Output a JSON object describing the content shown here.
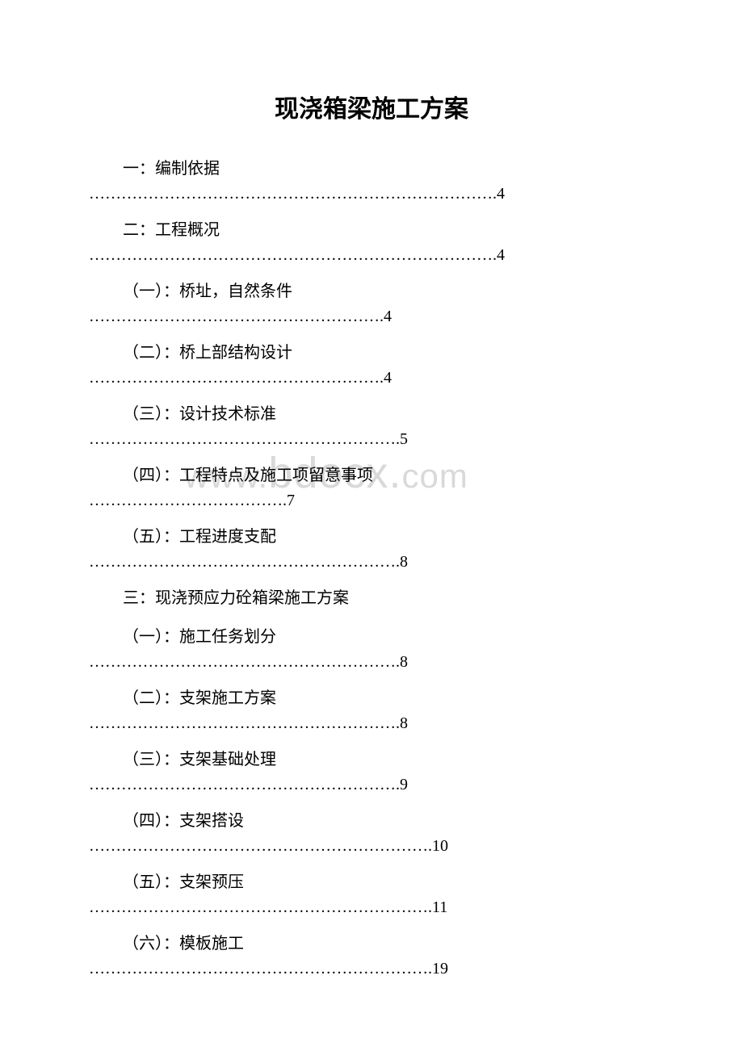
{
  "document": {
    "title": "现浇箱梁施工方案",
    "watermark": "www.bdocx.com",
    "text_color": "#000000",
    "background_color": "#ffffff",
    "watermark_color": "#d9d9d9",
    "title_fontsize": 30,
    "body_fontsize": 20
  },
  "toc": [
    {
      "label": "一：编制依据",
      "dots": "………………………………………………………………….4",
      "level": 1,
      "has_dots": true
    },
    {
      "label": "二：工程概况",
      "dots": "………………………………………………………………….4",
      "level": 1,
      "has_dots": true
    },
    {
      "label": "（一）：桥址，自然条件",
      "dots": "……………………………………………….4",
      "level": 2,
      "has_dots": true
    },
    {
      "label": "（二）：桥上部结构设计",
      "dots": "……………………………………………….4",
      "level": 2,
      "has_dots": true
    },
    {
      "label": "（三）：设计技术标准",
      "dots": "………………………………………………….5",
      "level": 2,
      "has_dots": true
    },
    {
      "label": "（四）：工程特点及施工项留意事项",
      "dots": "……………………………….7",
      "level": 2,
      "has_dots": true
    },
    {
      "label": "（五）：工程进度支配",
      "dots": "………………………………………………….8",
      "level": 2,
      "has_dots": true
    },
    {
      "label": "三：现浇预应力砼箱梁施工方案",
      "dots": "",
      "level": 1,
      "has_dots": false
    },
    {
      "label": "（一）：施工任务划分",
      "dots": "………………………………………………….8",
      "level": 2,
      "has_dots": true
    },
    {
      "label": "（二）：支架施工方案",
      "dots": "………………………………………………….8",
      "level": 2,
      "has_dots": true
    },
    {
      "label": "（三）：支架基础处理",
      "dots": "………………………………………………….9",
      "level": 2,
      "has_dots": true
    },
    {
      "label": "（四）：支架搭设",
      "dots": "……………………………………………………….10",
      "level": 2,
      "has_dots": true
    },
    {
      "label": "（五）：支架预压",
      "dots": "……………………………………………………….11",
      "level": 2,
      "has_dots": true
    },
    {
      "label": "（六）：模板施工",
      "dots": "……………………………………………………….19",
      "level": 2,
      "has_dots": true
    }
  ]
}
